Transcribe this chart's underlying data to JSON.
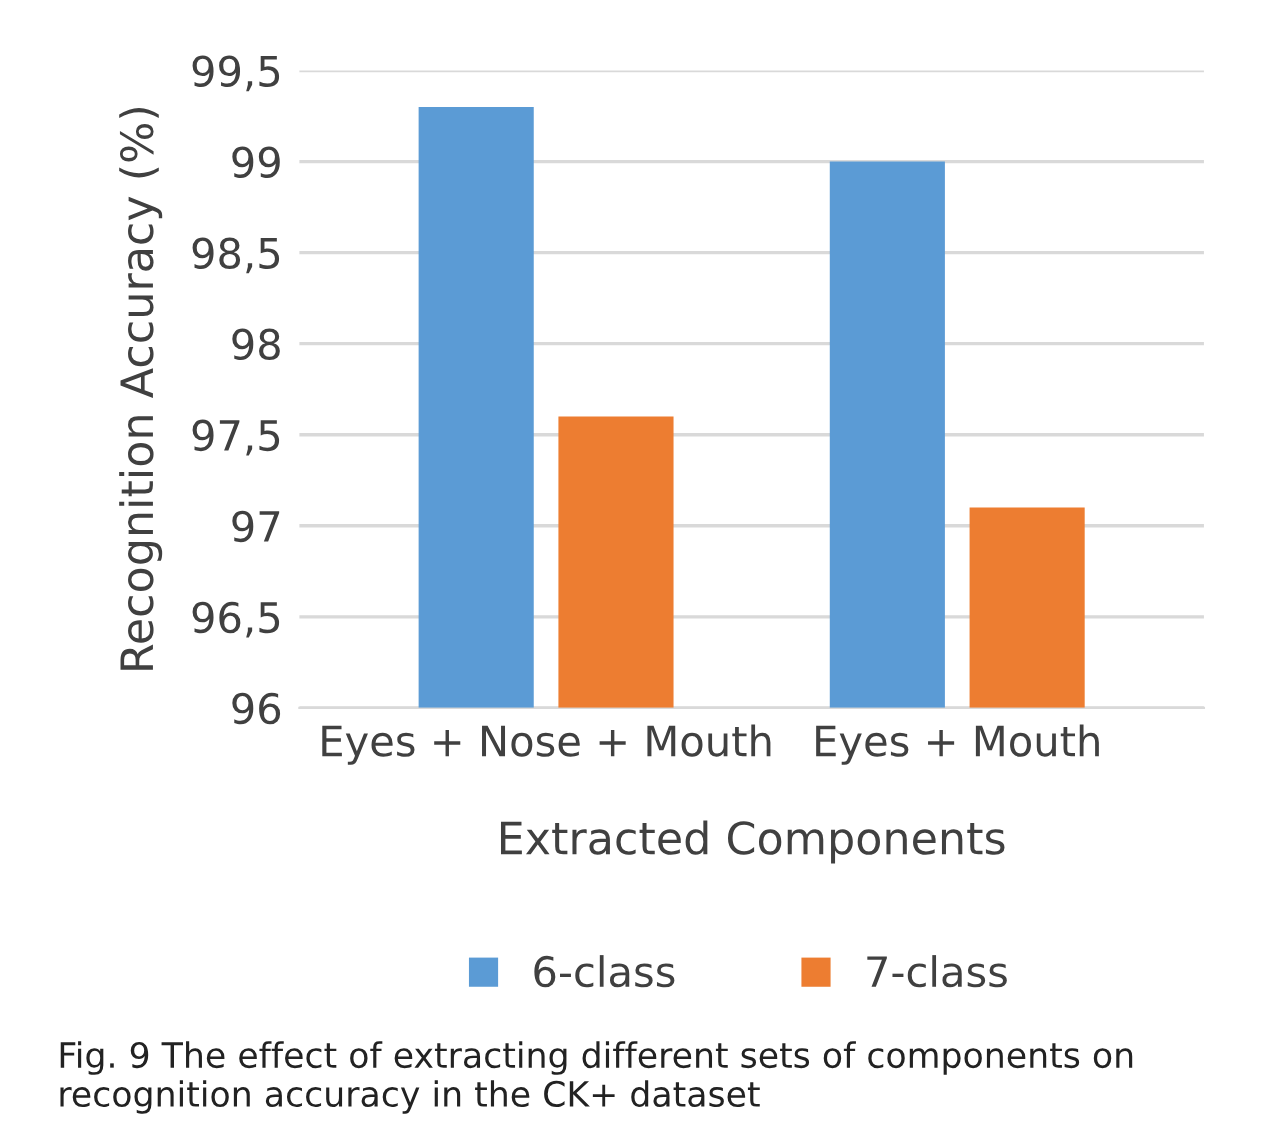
{
  "chart_data": {
    "type": "bar",
    "xlabel": "Extracted Components",
    "ylabel": "Recognition Accuracy (%)",
    "categories": [
      "Eyes + Nose + Mouth",
      "Eyes + Mouth"
    ],
    "series": [
      {
        "name": "6-class",
        "color": "#5b9bd5",
        "values": [
          99.3,
          99.0
        ]
      },
      {
        "name": "7-class",
        "color": "#ed7d31",
        "values": [
          97.6,
          97.1
        ]
      }
    ],
    "ylim": [
      96,
      99.5
    ],
    "yticks": [
      {
        "value": 96,
        "label": "96"
      },
      {
        "value": 96.5,
        "label": "96,5"
      },
      {
        "value": 97,
        "label": "97"
      },
      {
        "value": 97.5,
        "label": "97,5"
      },
      {
        "value": 98,
        "label": "98"
      },
      {
        "value": 98.5,
        "label": "98,5"
      },
      {
        "value": 99,
        "label": "99"
      },
      {
        "value": 99.5,
        "label": "99,5"
      }
    ],
    "grid": "y",
    "legend": "bottom",
    "annotations": [
      "Fig. 9 The effect of extracting different sets of components on recognition accuracy in the CK+ dataset"
    ]
  }
}
